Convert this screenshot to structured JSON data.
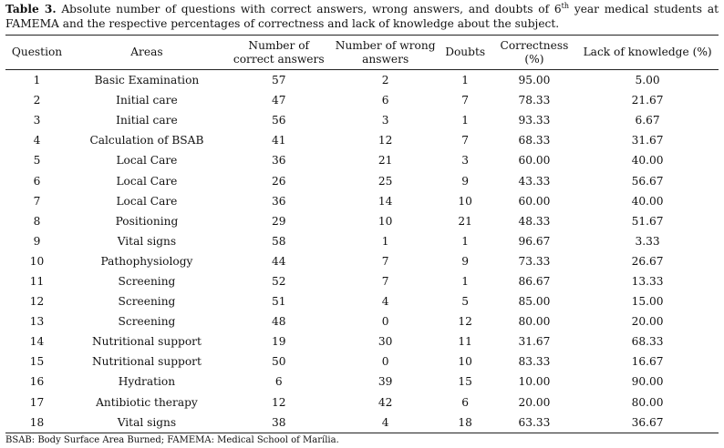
{
  "caption": {
    "label": "Table 3.",
    "text_before_sup": " Absolute number of questions with correct answers, wrong answers, and doubts of 6",
    "sup": "th",
    "text_after_sup": " year medical students at FAMEMA and the respective percentages of correctness and lack of knowledge about the subject."
  },
  "table": {
    "headers": {
      "question": "Question",
      "areas": "Areas",
      "correct": "Number of correct answers",
      "wrong": "Number of wrong answers",
      "doubts": "Doubts",
      "correctness": "Correctness (%)",
      "lack": "Lack of knowledge (%)"
    },
    "rows": [
      {
        "question": "1",
        "area": "Basic Examination",
        "correct": "57",
        "wrong": "2",
        "doubts": "1",
        "correctness": "95.00",
        "lack": "5.00"
      },
      {
        "question": "2",
        "area": "Initial care",
        "correct": "47",
        "wrong": "6",
        "doubts": "7",
        "correctness": "78.33",
        "lack": "21.67"
      },
      {
        "question": "3",
        "area": "Initial care",
        "correct": "56",
        "wrong": "3",
        "doubts": "1",
        "correctness": "93.33",
        "lack": "6.67"
      },
      {
        "question": "4",
        "area": "Calculation of BSAB",
        "correct": "41",
        "wrong": "12",
        "doubts": "7",
        "correctness": "68.33",
        "lack": "31.67"
      },
      {
        "question": "5",
        "area": "Local Care",
        "correct": "36",
        "wrong": "21",
        "doubts": "3",
        "correctness": "60.00",
        "lack": "40.00"
      },
      {
        "question": "6",
        "area": "Local Care",
        "correct": "26",
        "wrong": "25",
        "doubts": "9",
        "correctness": "43.33",
        "lack": "56.67"
      },
      {
        "question": "7",
        "area": "Local Care",
        "correct": "36",
        "wrong": "14",
        "doubts": "10",
        "correctness": "60.00",
        "lack": "40.00"
      },
      {
        "question": "8",
        "area": "Positioning",
        "correct": "29",
        "wrong": "10",
        "doubts": "21",
        "correctness": "48.33",
        "lack": "51.67"
      },
      {
        "question": "9",
        "area": "Vital signs",
        "correct": "58",
        "wrong": "1",
        "doubts": "1",
        "correctness": "96.67",
        "lack": "3.33"
      },
      {
        "question": "10",
        "area": "Pathophysiology",
        "correct": "44",
        "wrong": "7",
        "doubts": "9",
        "correctness": "73.33",
        "lack": "26.67"
      },
      {
        "question": "11",
        "area": "Screening",
        "correct": "52",
        "wrong": "7",
        "doubts": "1",
        "correctness": "86.67",
        "lack": "13.33"
      },
      {
        "question": "12",
        "area": "Screening",
        "correct": "51",
        "wrong": "4",
        "doubts": "5",
        "correctness": "85.00",
        "lack": "15.00"
      },
      {
        "question": "13",
        "area": "Screening",
        "correct": "48",
        "wrong": "0",
        "doubts": "12",
        "correctness": "80.00",
        "lack": "20.00"
      },
      {
        "question": "14",
        "area": "Nutritional support",
        "correct": "19",
        "wrong": "30",
        "doubts": "11",
        "correctness": "31.67",
        "lack": "68.33"
      },
      {
        "question": "15",
        "area": "Nutritional support",
        "correct": "50",
        "wrong": "0",
        "doubts": "10",
        "correctness": "83.33",
        "lack": "16.67"
      },
      {
        "question": "16",
        "area": "Hydration",
        "correct": "6",
        "wrong": "39",
        "doubts": "15",
        "correctness": "10.00",
        "lack": "90.00"
      },
      {
        "question": "17",
        "area": "Antibiotic therapy",
        "correct": "12",
        "wrong": "42",
        "doubts": "6",
        "correctness": "20.00",
        "lack": "80.00"
      },
      {
        "question": "18",
        "area": "Vital signs",
        "correct": "38",
        "wrong": "4",
        "doubts": "18",
        "correctness": "63.33",
        "lack": "36.67"
      }
    ]
  },
  "footnote": "BSAB: Body Surface Area Burned; FAMEMA: Medical School of Marília."
}
